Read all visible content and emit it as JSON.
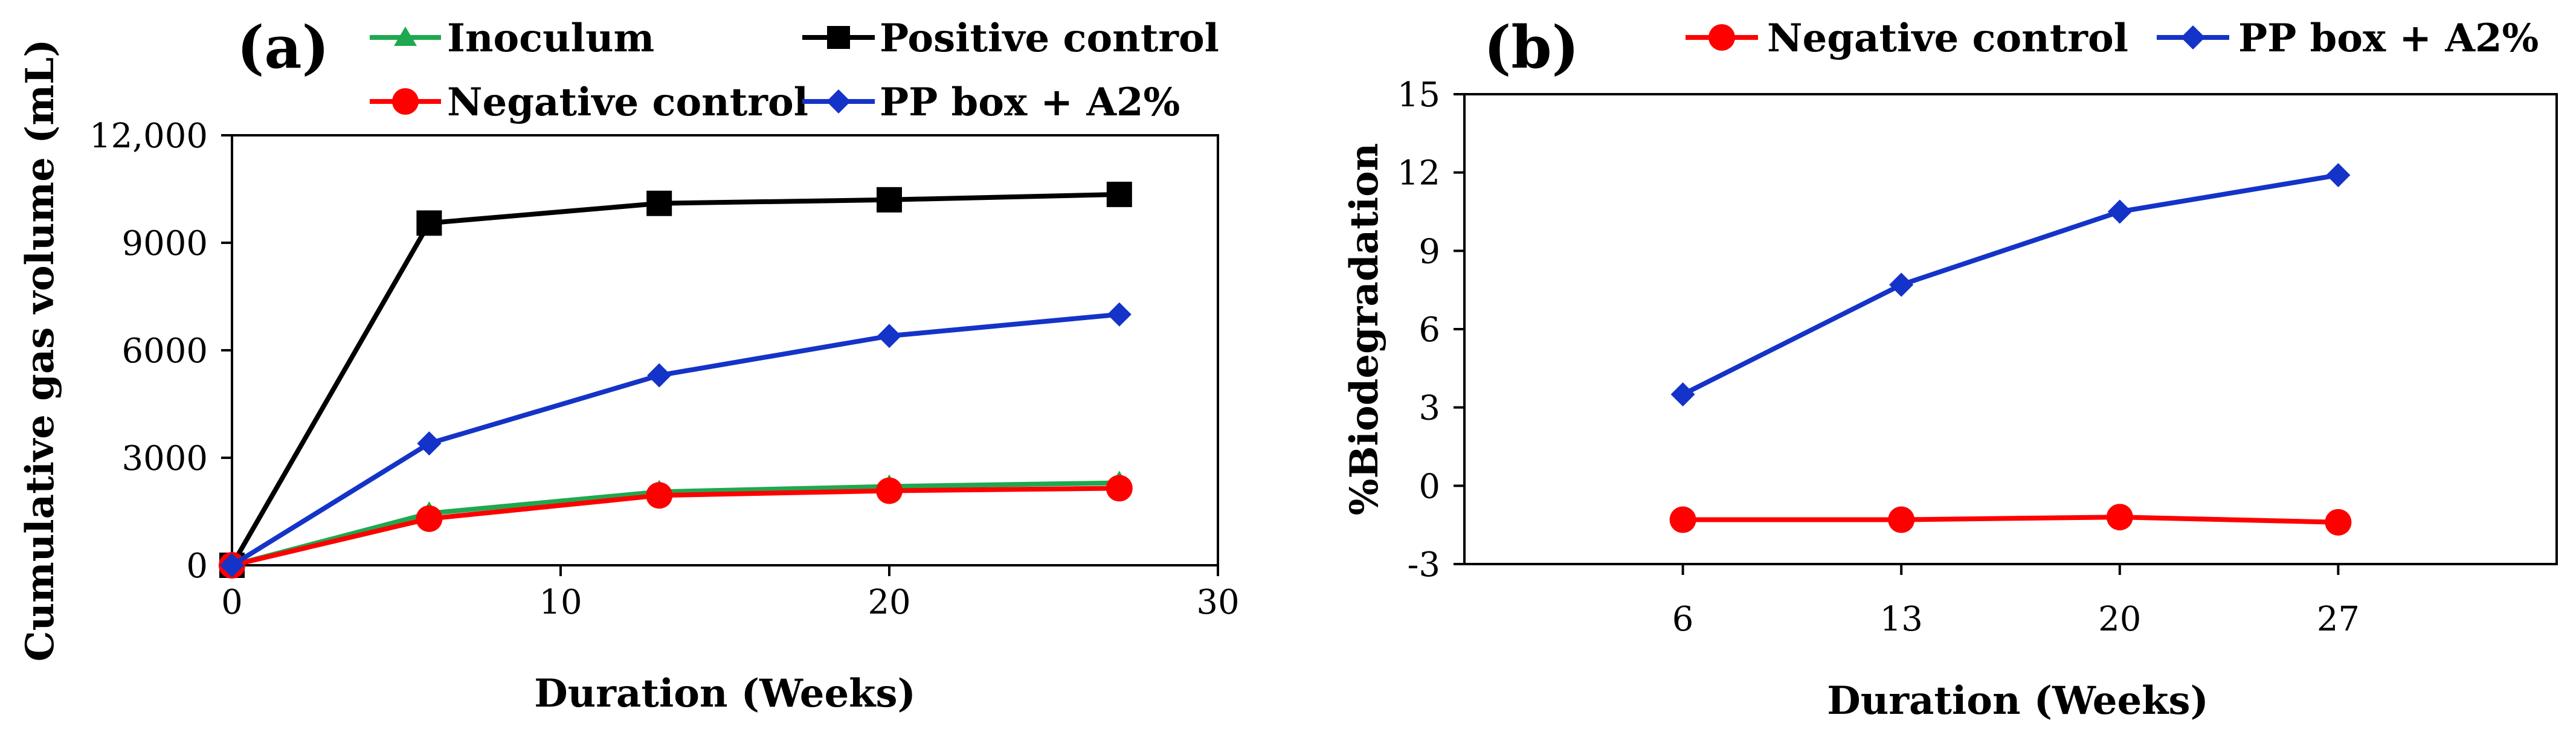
{
  "chart_data": [
    {
      "panel_label": "(a)",
      "type": "line",
      "xlabel": "Duration (Weeks)",
      "ylabel": "Cumulative gas volume (mL)",
      "xlim": [
        0,
        30
      ],
      "ylim": [
        0,
        12000
      ],
      "xticks": [
        0,
        10,
        20,
        30
      ],
      "yticks": [
        0,
        3000,
        6000,
        9000,
        12000
      ],
      "xtick_labels": [
        "0",
        "10",
        "20",
        "30"
      ],
      "ytick_labels": [
        "0",
        "3000",
        "6000",
        "9000",
        "12,000"
      ],
      "legend_position": "top",
      "series": [
        {
          "name": "Inoculum",
          "color": "#1fa84f",
          "marker": "triangle",
          "x": [
            0,
            6,
            13,
            20,
            27
          ],
          "y": [
            0,
            1450,
            2050,
            2200,
            2300
          ]
        },
        {
          "name": "Positive control",
          "color": "#000000",
          "marker": "square",
          "x": [
            0,
            6,
            13,
            20,
            27
          ],
          "y": [
            0,
            9550,
            10100,
            10200,
            10350
          ]
        },
        {
          "name": "Negative control",
          "color": "#ff0000",
          "marker": "circle",
          "x": [
            0,
            6,
            13,
            20,
            27
          ],
          "y": [
            0,
            1300,
            1950,
            2080,
            2150
          ]
        },
        {
          "name": "PP box + A2%",
          "color": "#1433c8",
          "marker": "diamond",
          "x": [
            0,
            6,
            13,
            20,
            27
          ],
          "y": [
            0,
            3400,
            5300,
            6400,
            7000
          ]
        }
      ]
    },
    {
      "panel_label": "(b)",
      "type": "line",
      "xlabel": "Duration (Weeks)",
      "ylabel": "%Biodegradation",
      "categories": [
        "6",
        "13",
        "20",
        "27"
      ],
      "ylim": [
        -3,
        15
      ],
      "yticks": [
        -3,
        0,
        3,
        6,
        9,
        12,
        15
      ],
      "ytick_labels": [
        "-3",
        "0",
        "3",
        "6",
        "9",
        "12",
        "15"
      ],
      "legend_position": "top",
      "series": [
        {
          "name": "Negative control",
          "color": "#ff0000",
          "marker": "circle",
          "values": [
            -1.3,
            -1.3,
            -1.2,
            -1.4
          ]
        },
        {
          "name": "PP box + A2%",
          "color": "#1433c8",
          "marker": "diamond",
          "values": [
            3.5,
            7.7,
            10.5,
            11.9
          ]
        }
      ]
    }
  ]
}
